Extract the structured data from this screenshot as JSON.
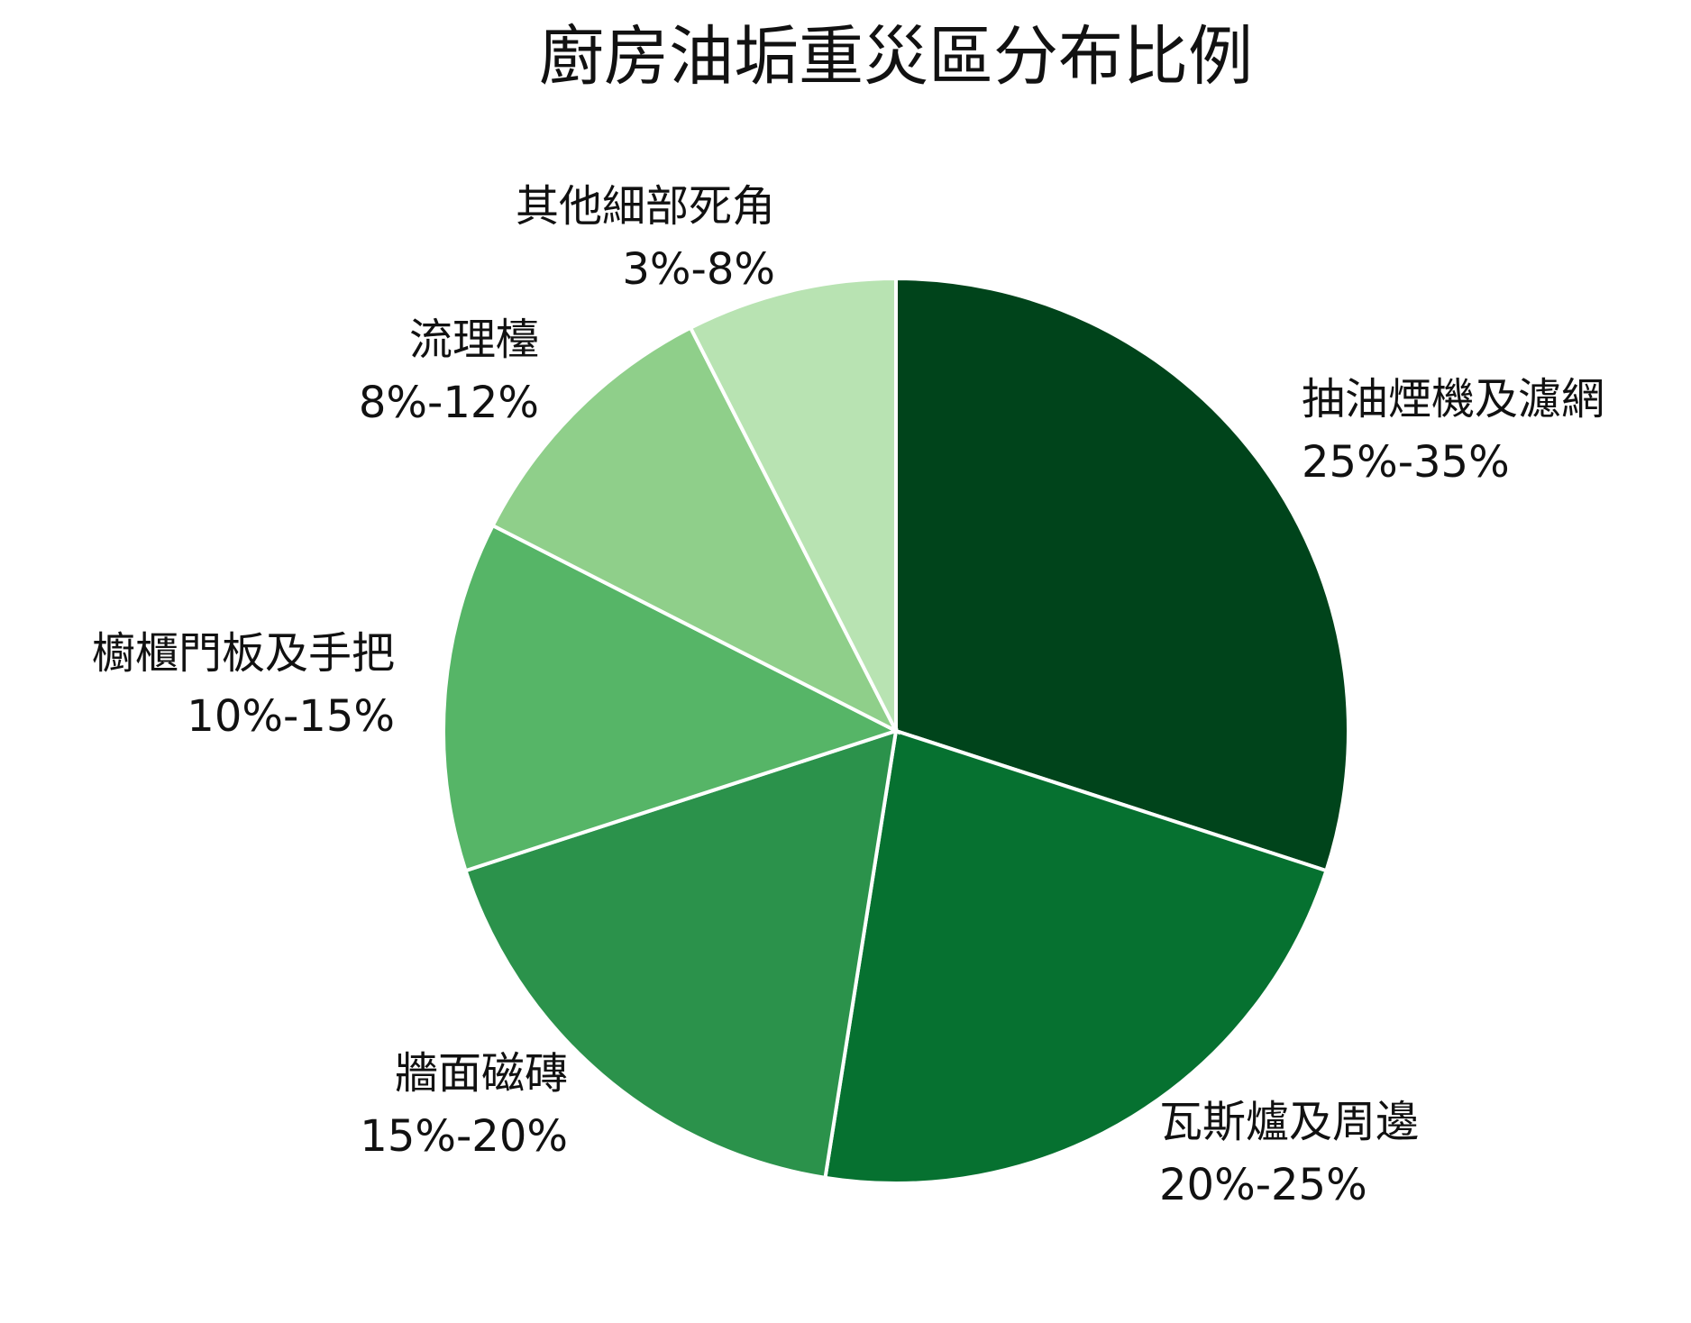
{
  "chart_data": {
    "type": "pie",
    "title": "廚房油垢重災區分布比例",
    "categories": [
      "抽油煙機及濾網",
      "瓦斯爐及周邊",
      "牆面磁磚",
      "櫥櫃門板及手把",
      "流理檯",
      "其他細部死角"
    ],
    "ranges": [
      "25%-35%",
      "20%-25%",
      "15%-20%",
      "10%-15%",
      "8%-12%",
      "3%-8%"
    ],
    "values": [
      30,
      22.5,
      17.5,
      12.5,
      10,
      7.5
    ],
    "colors": [
      "#00441b",
      "#067130",
      "#2b924b",
      "#56b567",
      "#8fcf8a",
      "#b8e3b2"
    ]
  }
}
